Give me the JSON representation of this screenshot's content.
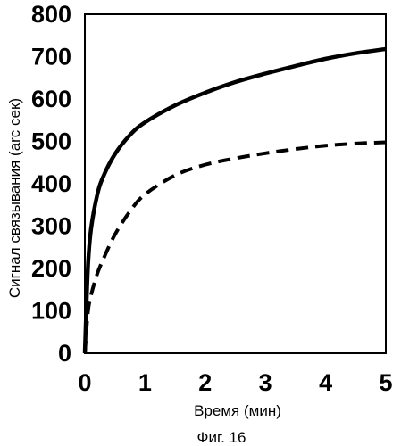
{
  "chart_data": {
    "type": "line",
    "xlabel": "Время (мин)",
    "ylabel": "Сигнал связывания (arc сек)",
    "caption": "Фиг. 16",
    "xlim": [
      0,
      5
    ],
    "ylim": [
      0,
      800
    ],
    "xticks": [
      "0",
      "1",
      "2",
      "3",
      "4",
      "5"
    ],
    "yticks": [
      "0",
      "100",
      "200",
      "300",
      "400",
      "500",
      "600",
      "700",
      "800"
    ],
    "grid": false,
    "series": [
      {
        "style": "solid",
        "x": [
          0,
          0.05,
          0.1,
          0.2,
          0.3,
          0.5,
          0.75,
          1.0,
          1.5,
          2.0,
          2.5,
          3.0,
          3.5,
          4.0,
          4.5,
          5.0
        ],
        "y": [
          0,
          200,
          290,
          370,
          415,
          470,
          515,
          545,
          585,
          615,
          640,
          660,
          678,
          695,
          708,
          718
        ]
      },
      {
        "style": "dashed",
        "x": [
          0,
          0.05,
          0.1,
          0.2,
          0.3,
          0.5,
          0.75,
          1.0,
          1.5,
          2.0,
          2.5,
          3.0,
          3.5,
          4.0,
          4.5,
          5.0
        ],
        "y": [
          0,
          95,
          135,
          185,
          220,
          280,
          335,
          375,
          420,
          445,
          460,
          472,
          482,
          490,
          495,
          498
        ]
      }
    ]
  }
}
